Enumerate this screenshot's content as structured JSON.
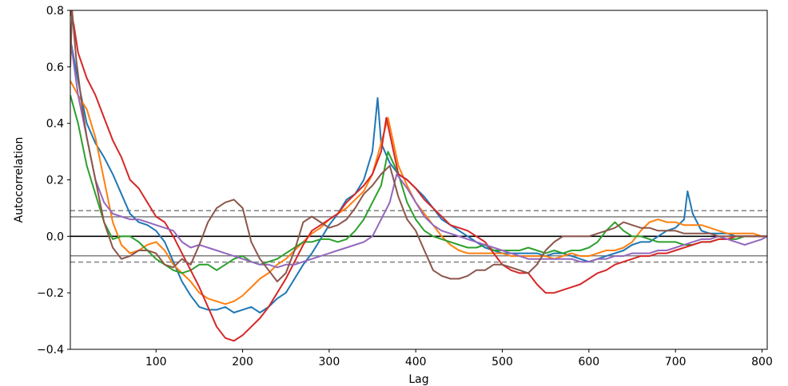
{
  "chart_data": {
    "type": "line",
    "title": "",
    "xlabel": "Lag",
    "ylabel": "Autocorrelation",
    "xlim": [
      1,
      806
    ],
    "ylim": [
      -0.4,
      0.8
    ],
    "x_ticks": [
      100,
      200,
      300,
      400,
      500,
      600,
      700,
      800
    ],
    "y_ticks": [
      -0.4,
      -0.2,
      0.0,
      0.2,
      0.4,
      0.6,
      0.8
    ],
    "x_tick_labels": [
      "100",
      "200",
      "300",
      "400",
      "500",
      "600",
      "700",
      "800"
    ],
    "y_tick_labels": [
      "−0.4",
      "−0.2",
      "0.0",
      "0.2",
      "0.4",
      "0.6",
      "0.8"
    ],
    "grid": false,
    "reference_lines": [
      {
        "value": 0.0,
        "style": "solid",
        "color": "#000000"
      },
      {
        "value": 0.069,
        "style": "solid",
        "color": "#808080"
      },
      {
        "value": -0.069,
        "style": "solid",
        "color": "#808080"
      },
      {
        "value": 0.091,
        "style": "dashed",
        "color": "#808080"
      },
      {
        "value": -0.091,
        "style": "dashed",
        "color": "#808080"
      }
    ],
    "series": [
      {
        "color": "#1f77b4",
        "x": [
          1,
          10,
          20,
          30,
          40,
          50,
          60,
          70,
          80,
          90,
          100,
          110,
          120,
          130,
          140,
          150,
          160,
          170,
          180,
          190,
          200,
          210,
          220,
          230,
          240,
          250,
          260,
          270,
          280,
          290,
          300,
          310,
          320,
          330,
          340,
          350,
          356,
          360,
          370,
          380,
          390,
          400,
          410,
          420,
          430,
          440,
          450,
          460,
          470,
          480,
          490,
          500,
          510,
          520,
          530,
          540,
          550,
          560,
          570,
          580,
          590,
          600,
          610,
          620,
          630,
          640,
          650,
          660,
          670,
          680,
          690,
          700,
          710,
          714,
          720,
          730,
          740,
          750,
          760,
          770,
          780,
          790,
          800,
          806
        ],
        "y": [
          0.7,
          0.55,
          0.4,
          0.33,
          0.28,
          0.22,
          0.15,
          0.08,
          0.05,
          0.04,
          0.02,
          -0.02,
          -0.09,
          -0.16,
          -0.21,
          -0.25,
          -0.26,
          -0.26,
          -0.25,
          -0.27,
          -0.26,
          -0.25,
          -0.27,
          -0.25,
          -0.22,
          -0.2,
          -0.15,
          -0.1,
          -0.06,
          -0.01,
          0.04,
          0.08,
          0.13,
          0.15,
          0.2,
          0.3,
          0.49,
          0.33,
          0.26,
          0.22,
          0.2,
          0.17,
          0.14,
          0.1,
          0.06,
          0.04,
          0.02,
          0.0,
          -0.02,
          -0.04,
          -0.05,
          -0.06,
          -0.06,
          -0.06,
          -0.06,
          -0.06,
          -0.07,
          -0.06,
          -0.06,
          -0.07,
          -0.08,
          -0.09,
          -0.08,
          -0.07,
          -0.06,
          -0.05,
          -0.03,
          -0.02,
          -0.02,
          0.0,
          0.02,
          0.03,
          0.06,
          0.16,
          0.08,
          0.02,
          0.01,
          0.01,
          0.01,
          0.0,
          0.0,
          0.0,
          0.0,
          0.0
        ]
      },
      {
        "color": "#ff7f0e",
        "x": [
          1,
          10,
          20,
          30,
          40,
          50,
          60,
          70,
          80,
          90,
          100,
          110,
          120,
          130,
          140,
          150,
          160,
          170,
          180,
          190,
          200,
          210,
          220,
          230,
          240,
          250,
          260,
          270,
          280,
          290,
          300,
          310,
          320,
          330,
          340,
          350,
          360,
          368,
          380,
          390,
          400,
          410,
          420,
          430,
          440,
          450,
          460,
          470,
          480,
          490,
          500,
          510,
          520,
          530,
          540,
          550,
          560,
          570,
          580,
          590,
          600,
          610,
          620,
          630,
          640,
          650,
          660,
          670,
          680,
          690,
          700,
          710,
          720,
          730,
          740,
          750,
          760,
          770,
          780,
          790,
          800,
          806
        ],
        "y": [
          0.55,
          0.5,
          0.45,
          0.35,
          0.2,
          0.05,
          -0.03,
          -0.06,
          -0.05,
          -0.03,
          -0.02,
          -0.05,
          -0.1,
          -0.13,
          -0.16,
          -0.2,
          -0.22,
          -0.23,
          -0.24,
          -0.23,
          -0.21,
          -0.18,
          -0.15,
          -0.13,
          -0.1,
          -0.08,
          -0.05,
          -0.02,
          0.01,
          0.03,
          0.06,
          0.08,
          0.1,
          0.13,
          0.16,
          0.22,
          0.33,
          0.42,
          0.25,
          0.18,
          0.12,
          0.08,
          0.04,
          0.0,
          -0.03,
          -0.05,
          -0.06,
          -0.06,
          -0.06,
          -0.06,
          -0.06,
          -0.07,
          -0.07,
          -0.07,
          -0.07,
          -0.07,
          -0.08,
          -0.07,
          -0.06,
          -0.07,
          -0.07,
          -0.06,
          -0.05,
          -0.05,
          -0.04,
          -0.02,
          0.02,
          0.05,
          0.06,
          0.05,
          0.05,
          0.04,
          0.04,
          0.04,
          0.03,
          0.02,
          0.01,
          0.01,
          0.01,
          0.01,
          0.0,
          0.0
        ]
      },
      {
        "color": "#2ca02c",
        "x": [
          1,
          10,
          20,
          30,
          40,
          50,
          60,
          70,
          80,
          90,
          100,
          110,
          120,
          130,
          140,
          150,
          160,
          170,
          180,
          190,
          200,
          210,
          220,
          230,
          240,
          250,
          260,
          270,
          280,
          290,
          300,
          310,
          320,
          330,
          340,
          350,
          360,
          368,
          380,
          390,
          400,
          410,
          420,
          430,
          440,
          450,
          460,
          470,
          480,
          490,
          500,
          510,
          520,
          530,
          540,
          550,
          560,
          570,
          580,
          590,
          600,
          610,
          620,
          630,
          640,
          650,
          660,
          670,
          680,
          690,
          700,
          710,
          720,
          730,
          740,
          750,
          760,
          770,
          780,
          790,
          800,
          806
        ],
        "y": [
          0.5,
          0.4,
          0.25,
          0.15,
          0.05,
          -0.01,
          0.0,
          0.0,
          -0.02,
          -0.05,
          -0.08,
          -0.1,
          -0.12,
          -0.13,
          -0.12,
          -0.1,
          -0.1,
          -0.12,
          -0.1,
          -0.08,
          -0.07,
          -0.09,
          -0.1,
          -0.09,
          -0.08,
          -0.06,
          -0.04,
          -0.02,
          -0.02,
          -0.01,
          -0.01,
          -0.02,
          -0.01,
          0.02,
          0.06,
          0.12,
          0.18,
          0.3,
          0.22,
          0.12,
          0.06,
          0.02,
          0.0,
          -0.01,
          -0.02,
          -0.03,
          -0.04,
          -0.04,
          -0.03,
          -0.05,
          -0.05,
          -0.05,
          -0.05,
          -0.04,
          -0.05,
          -0.06,
          -0.05,
          -0.06,
          -0.05,
          -0.05,
          -0.04,
          -0.02,
          0.02,
          0.05,
          0.02,
          0.0,
          0.0,
          -0.01,
          -0.02,
          -0.02,
          -0.02,
          -0.03,
          -0.03,
          -0.02,
          -0.02,
          -0.01,
          -0.01,
          -0.01,
          0.0,
          0.0,
          0.0,
          0.0
        ]
      },
      {
        "color": "#d62728",
        "x": [
          1,
          5,
          10,
          20,
          30,
          40,
          50,
          60,
          70,
          80,
          90,
          100,
          110,
          120,
          130,
          140,
          150,
          160,
          170,
          180,
          190,
          200,
          210,
          220,
          230,
          240,
          250,
          260,
          270,
          280,
          290,
          300,
          310,
          320,
          330,
          340,
          350,
          360,
          366,
          380,
          390,
          400,
          410,
          420,
          430,
          440,
          450,
          460,
          470,
          480,
          490,
          500,
          510,
          520,
          530,
          540,
          550,
          560,
          570,
          580,
          590,
          600,
          610,
          620,
          630,
          640,
          650,
          660,
          670,
          680,
          690,
          700,
          710,
          720,
          730,
          740,
          750,
          760,
          770,
          780,
          790,
          800,
          806
        ],
        "y": [
          0.8,
          0.75,
          0.65,
          0.56,
          0.5,
          0.42,
          0.34,
          0.28,
          0.2,
          0.17,
          0.12,
          0.07,
          0.05,
          0.0,
          -0.06,
          -0.12,
          -0.18,
          -0.25,
          -0.32,
          -0.36,
          -0.37,
          -0.35,
          -0.32,
          -0.29,
          -0.25,
          -0.2,
          -0.15,
          -0.09,
          -0.03,
          0.02,
          0.04,
          0.06,
          0.08,
          0.12,
          0.15,
          0.18,
          0.22,
          0.3,
          0.42,
          0.22,
          0.2,
          0.17,
          0.13,
          0.1,
          0.07,
          0.04,
          0.03,
          0.02,
          0.0,
          -0.02,
          -0.06,
          -0.1,
          -0.12,
          -0.13,
          -0.13,
          -0.17,
          -0.2,
          -0.2,
          -0.19,
          -0.18,
          -0.17,
          -0.15,
          -0.13,
          -0.12,
          -0.1,
          -0.09,
          -0.08,
          -0.07,
          -0.07,
          -0.06,
          -0.06,
          -0.05,
          -0.04,
          -0.03,
          -0.02,
          -0.02,
          -0.01,
          -0.01,
          0.0,
          0.0,
          0.0,
          0.0,
          0.0
        ]
      },
      {
        "color": "#9467bd",
        "x": [
          1,
          10,
          20,
          30,
          40,
          50,
          60,
          70,
          80,
          90,
          100,
          110,
          120,
          130,
          140,
          150,
          160,
          170,
          180,
          190,
          200,
          210,
          220,
          230,
          240,
          250,
          260,
          270,
          280,
          290,
          300,
          310,
          320,
          330,
          340,
          350,
          360,
          370,
          378,
          390,
          400,
          410,
          420,
          430,
          440,
          450,
          460,
          470,
          480,
          490,
          500,
          510,
          520,
          530,
          540,
          550,
          560,
          570,
          580,
          590,
          600,
          610,
          620,
          630,
          640,
          650,
          660,
          670,
          680,
          690,
          700,
          710,
          720,
          730,
          740,
          750,
          760,
          770,
          780,
          790,
          800,
          806
        ],
        "y": [
          0.7,
          0.5,
          0.35,
          0.2,
          0.12,
          0.08,
          0.07,
          0.06,
          0.06,
          0.05,
          0.04,
          0.03,
          0.02,
          -0.02,
          -0.04,
          -0.03,
          -0.04,
          -0.05,
          -0.06,
          -0.07,
          -0.08,
          -0.09,
          -0.1,
          -0.1,
          -0.11,
          -0.1,
          -0.1,
          -0.09,
          -0.08,
          -0.07,
          -0.06,
          -0.05,
          -0.04,
          -0.03,
          -0.02,
          0.0,
          0.06,
          0.12,
          0.22,
          0.17,
          0.12,
          0.07,
          0.04,
          0.02,
          0.01,
          0.0,
          -0.01,
          -0.02,
          -0.03,
          -0.04,
          -0.05,
          -0.06,
          -0.07,
          -0.08,
          -0.08,
          -0.08,
          -0.08,
          -0.08,
          -0.08,
          -0.09,
          -0.09,
          -0.08,
          -0.08,
          -0.07,
          -0.07,
          -0.06,
          -0.06,
          -0.06,
          -0.05,
          -0.05,
          -0.04,
          -0.03,
          -0.02,
          -0.01,
          -0.01,
          0.0,
          -0.01,
          -0.02,
          -0.03,
          -0.02,
          -0.01,
          0.0
        ]
      },
      {
        "color": "#8c564b",
        "x": [
          1,
          3,
          8,
          15,
          20,
          30,
          40,
          50,
          60,
          70,
          80,
          90,
          100,
          110,
          120,
          130,
          140,
          150,
          160,
          170,
          180,
          190,
          200,
          210,
          220,
          230,
          240,
          250,
          260,
          270,
          280,
          290,
          300,
          310,
          320,
          330,
          340,
          350,
          360,
          370,
          380,
          390,
          400,
          410,
          420,
          430,
          440,
          450,
          460,
          470,
          480,
          490,
          500,
          510,
          520,
          530,
          540,
          550,
          560,
          570,
          580,
          590,
          600,
          610,
          620,
          630,
          640,
          650,
          660,
          670,
          680,
          690,
          700,
          710,
          720,
          730,
          740,
          750,
          760,
          770,
          780,
          790,
          800,
          806
        ],
        "y": [
          0.6,
          0.8,
          0.62,
          0.45,
          0.35,
          0.2,
          0.05,
          -0.04,
          -0.08,
          -0.07,
          -0.05,
          -0.05,
          -0.06,
          -0.1,
          -0.11,
          -0.08,
          -0.1,
          -0.03,
          0.05,
          0.1,
          0.12,
          0.13,
          0.1,
          -0.02,
          -0.08,
          -0.12,
          -0.16,
          -0.13,
          -0.05,
          0.05,
          0.07,
          0.05,
          0.03,
          0.04,
          0.06,
          0.1,
          0.15,
          0.18,
          0.22,
          0.25,
          0.14,
          0.06,
          0.02,
          -0.05,
          -0.12,
          -0.14,
          -0.15,
          -0.15,
          -0.14,
          -0.12,
          -0.12,
          -0.1,
          -0.1,
          -0.11,
          -0.12,
          -0.13,
          -0.1,
          -0.05,
          -0.02,
          0.0,
          0.0,
          0.0,
          0.0,
          0.01,
          0.02,
          0.03,
          0.05,
          0.04,
          0.03,
          0.03,
          0.02,
          0.02,
          0.02,
          0.01,
          0.01,
          0.01,
          0.01,
          0.0,
          0.0,
          0.0,
          0.0,
          0.0,
          0.0,
          0.0
        ]
      }
    ]
  }
}
